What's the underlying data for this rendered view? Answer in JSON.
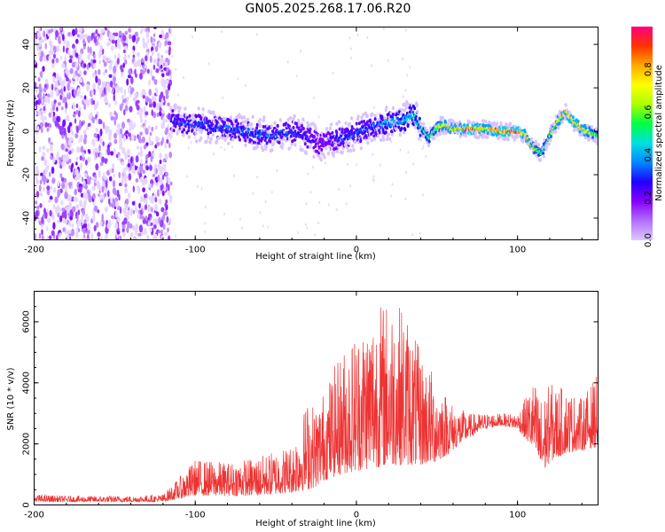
{
  "figure": {
    "title": "GN05.2025.268.17.06.R20"
  },
  "colors": {
    "snr_line": "#ee3333",
    "frame": "#000000",
    "colormap_stops": [
      "#ffffff",
      "#e0c8ff",
      "#b070ff",
      "#8800ff",
      "#2200ff",
      "#0088ff",
      "#00e0e0",
      "#00ff44",
      "#aaff00",
      "#ffff00",
      "#ffaa00",
      "#ff3300",
      "#ff0080"
    ]
  },
  "chart_data": [
    {
      "id": "spectrogram",
      "type": "heatmap",
      "title": "GN05.2025.268.17.06.R20",
      "xlabel": "Height of straight line (km)",
      "ylabel": "Frequency (Hz)",
      "xlim": [
        -200,
        150
      ],
      "ylim": [
        -50,
        48
      ],
      "xticks": [
        -200,
        -100,
        0,
        100
      ],
      "yticks": [
        -40,
        -20,
        0,
        20,
        40
      ],
      "colorbar": {
        "label": "Normalized spectral amplitude",
        "range": [
          0,
          1
        ],
        "ticks": [
          0.0,
          0.2,
          0.4,
          0.6,
          0.8
        ]
      },
      "noise_region_x": [
        -200,
        -115
      ],
      "ridge": {
        "x": [
          -115,
          -100,
          -90,
          -80,
          -70,
          -60,
          -50,
          -40,
          -30,
          -22,
          -15,
          -5,
          0,
          10,
          20,
          30,
          35,
          40,
          45,
          50,
          55,
          60,
          70,
          80,
          90,
          100,
          105,
          110,
          115,
          120,
          125,
          130,
          135,
          140,
          150
        ],
        "freq": [
          5,
          3,
          2,
          1,
          0,
          -1,
          -2,
          0,
          -3,
          -6,
          -4,
          -2,
          -1,
          2,
          4,
          5,
          8,
          2,
          -3,
          2,
          3,
          1,
          1,
          1,
          0,
          0,
          -2,
          -8,
          -10,
          -2,
          5,
          9,
          4,
          1,
          -2
        ],
        "peak_amplitude": [
          0.35,
          0.4,
          0.4,
          0.4,
          0.4,
          0.4,
          0.4,
          0.4,
          0.35,
          0.3,
          0.35,
          0.4,
          0.4,
          0.4,
          0.45,
          0.5,
          0.5,
          0.6,
          0.6,
          0.7,
          0.8,
          0.8,
          0.95,
          0.8,
          0.95,
          0.95,
          0.85,
          0.7,
          0.6,
          0.7,
          0.8,
          0.9,
          0.9,
          0.85,
          0.6
        ]
      }
    },
    {
      "id": "snr",
      "type": "line",
      "title": "",
      "xlabel": "Height of straight line (km)",
      "ylabel": "SNR (10 * v/v)",
      "xlim": [
        -200,
        150
      ],
      "ylim": [
        0,
        7000
      ],
      "xticks": [
        -200,
        -100,
        0,
        100
      ],
      "yticks": [
        0,
        2000,
        4000,
        6000
      ],
      "series": [
        {
          "name": "SNR",
          "x": [
            -200,
            -180,
            -160,
            -140,
            -120,
            -110,
            -100,
            -80,
            -60,
            -40,
            -30,
            -25,
            -20,
            -10,
            0,
            10,
            20,
            30,
            40,
            50,
            60,
            70,
            80,
            90,
            100,
            110,
            115,
            120,
            130,
            140,
            150
          ],
          "envelope_low": [
            100,
            100,
            100,
            100,
            100,
            200,
            300,
            300,
            300,
            400,
            500,
            600,
            800,
            1000,
            1100,
            1200,
            1300,
            1300,
            1300,
            1400,
            1800,
            2200,
            2500,
            2600,
            2500,
            1800,
            1000,
            1400,
            1700,
            1800,
            1900
          ],
          "envelope_high": [
            350,
            300,
            300,
            300,
            350,
            900,
            1500,
            1400,
            1600,
            2000,
            3500,
            3300,
            3800,
            5000,
            5800,
            6500,
            6800,
            6500,
            5000,
            4200,
            3300,
            3000,
            3000,
            3000,
            3000,
            4100,
            3500,
            4000,
            3800,
            3500,
            4300
          ]
        }
      ]
    }
  ]
}
